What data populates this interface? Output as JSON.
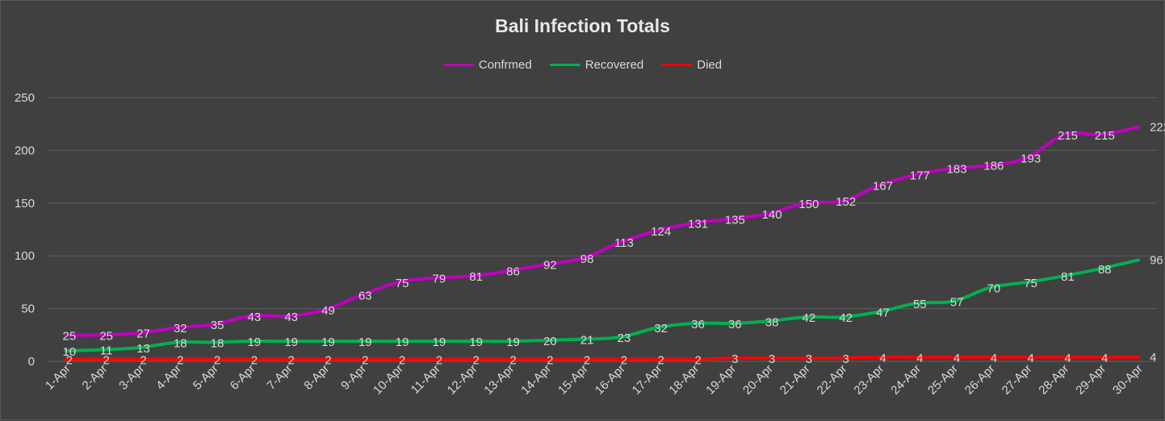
{
  "chart_data": {
    "type": "line",
    "title": "Bali Infection Totals",
    "xlabel": "",
    "ylabel": "",
    "ylim": [
      0,
      250
    ],
    "yticks": [
      0,
      50,
      100,
      150,
      200,
      250
    ],
    "grid": "horizontal",
    "legend_position": "top",
    "categories": [
      "1-Apr",
      "2-Apr",
      "3-Apr",
      "4-Apr",
      "5-Apr",
      "6-Apr",
      "7-Apr",
      "8-Apr",
      "9-Apr",
      "10-Apr",
      "11-Apr",
      "12-Apr",
      "13-Apr",
      "14-Apr",
      "15-Apr",
      "16-Apr",
      "17-Apr",
      "18-Apr",
      "19-Apr",
      "20-Apr",
      "21-Apr",
      "22-Apr",
      "23-Apr",
      "24-Apr",
      "25-Apr",
      "26-Apr",
      "27-Apr",
      "28-Apr",
      "29-Apr",
      "30-Apr"
    ],
    "series": [
      {
        "name": "Confrmed",
        "color": "#c000c0",
        "values": [
          25,
          25,
          27,
          32,
          35,
          43,
          43,
          49,
          63,
          75,
          79,
          81,
          86,
          92,
          98,
          113,
          124,
          131,
          135,
          140,
          150,
          152,
          167,
          177,
          183,
          186,
          193,
          215,
          215,
          222
        ]
      },
      {
        "name": "Recovered",
        "color": "#00b050",
        "values": [
          10,
          11,
          13,
          18,
          18,
          19,
          19,
          19,
          19,
          19,
          19,
          19,
          19,
          20,
          21,
          23,
          32,
          36,
          36,
          38,
          42,
          42,
          47,
          55,
          57,
          70,
          75,
          81,
          88,
          96
        ]
      },
      {
        "name": "Died",
        "color": "#ff0000",
        "values": [
          2,
          2,
          2,
          2,
          2,
          2,
          2,
          2,
          2,
          2,
          2,
          2,
          2,
          2,
          2,
          2,
          2,
          2,
          3,
          3,
          3,
          3,
          4,
          4,
          4,
          4,
          4,
          4,
          4,
          4
        ]
      }
    ]
  }
}
